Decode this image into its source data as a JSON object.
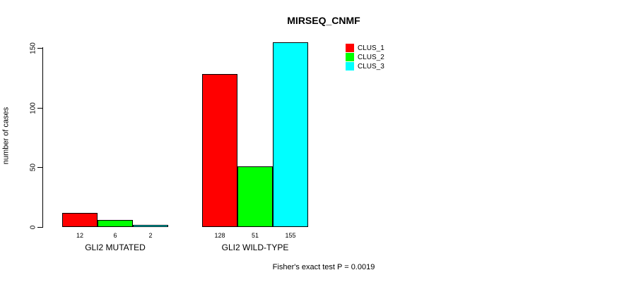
{
  "chart_data": {
    "type": "bar",
    "title": "MIRSEQ_CNMF",
    "ylabel": "number of cases",
    "xlabel": "",
    "categories": [
      "GLI2 MUTATED",
      "GLI2 WILD-TYPE"
    ],
    "series": [
      {
        "name": "CLUS_1",
        "color": "#ff0000",
        "values": [
          12,
          128
        ]
      },
      {
        "name": "CLUS_2",
        "color": "#00ff00",
        "values": [
          6,
          51
        ]
      },
      {
        "name": "CLUS_3",
        "color": "#00ffff",
        "values": [
          2,
          155
        ]
      }
    ],
    "yticks": [
      0,
      50,
      100,
      150
    ],
    "ylim": [
      0,
      155
    ],
    "bar_border_color": "#000000",
    "grid": false,
    "legend_position": "top-right-inside",
    "bar_value_labels_shown": true,
    "annotation": "Fisher's exact test P = 0.0019"
  }
}
